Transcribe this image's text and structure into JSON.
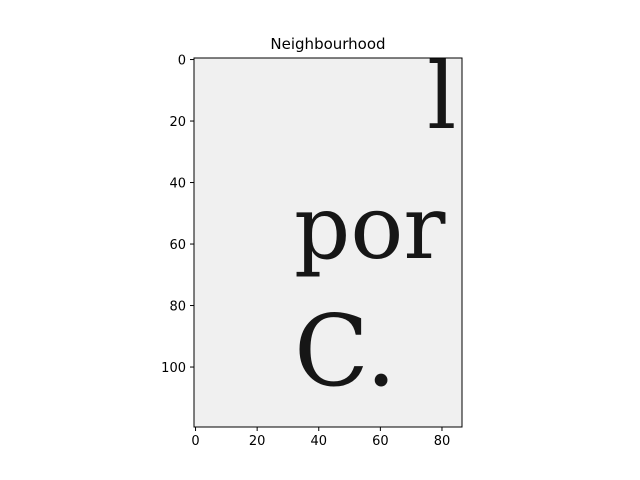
{
  "chart_data": {
    "type": "image",
    "title": "Neighbourhood",
    "xlabel": "",
    "ylabel": "",
    "xlim": [
      -0.5,
      86.5
    ],
    "ylim": [
      119.5,
      -0.5
    ],
    "xticks": [
      0,
      20,
      40,
      60,
      80
    ],
    "yticks": [
      0,
      20,
      40,
      60,
      80,
      100
    ],
    "grid": false,
    "image_content": {
      "description_text": [
        "l",
        "por",
        "C."
      ],
      "background_color": "#f0f0f0",
      "ink_color": "#161616"
    }
  }
}
